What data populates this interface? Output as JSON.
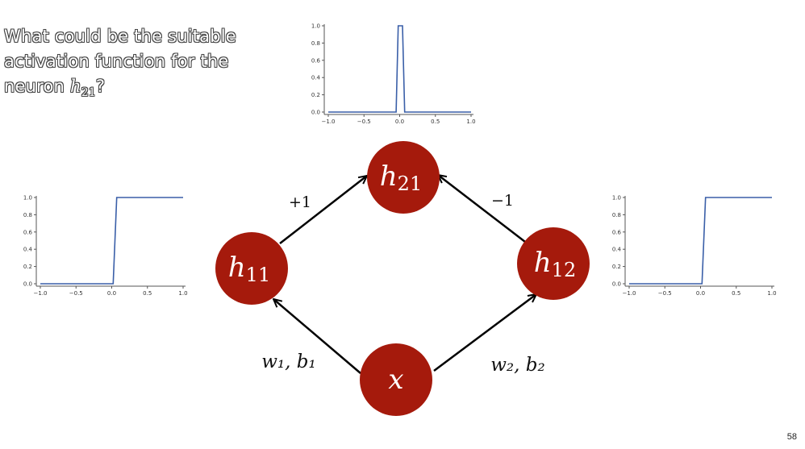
{
  "question": {
    "text": "What could be the suitable activation function for the neuron",
    "var_base": "h",
    "var_sub": "21",
    "suffix": "?"
  },
  "plots": [
    {
      "id": "h21",
      "type": "line",
      "x": [
        -1.0,
        -0.05,
        -0.02,
        0.0,
        0.04,
        0.07,
        1.0
      ],
      "y": [
        0.0,
        0.0,
        1.0,
        1.0,
        1.0,
        0.0,
        0.0
      ],
      "xlim": [
        -1.0,
        1.0
      ],
      "ylim": [
        0.0,
        1.0
      ],
      "xticks": [
        "−1.0",
        "−0.5",
        "0.0",
        "0.5",
        "1.0"
      ],
      "yticks": [
        "0.0",
        "0.2",
        "0.4",
        "0.6",
        "0.8",
        "1.0"
      ],
      "line_color": "#3a5fa8"
    },
    {
      "id": "h11",
      "type": "line",
      "x": [
        -1.0,
        0.02,
        0.07,
        1.0
      ],
      "y": [
        0.0,
        0.0,
        1.0,
        1.0
      ],
      "xlim": [
        -1.0,
        1.0
      ],
      "ylim": [
        0.0,
        1.0
      ],
      "xticks": [
        "−1.0",
        "−0.5",
        "0.0",
        "0.5",
        "1.0"
      ],
      "yticks": [
        "0.0",
        "0.2",
        "0.4",
        "0.6",
        "0.8",
        "1.0"
      ],
      "line_color": "#3a5fa8"
    },
    {
      "id": "h12",
      "type": "line",
      "x": [
        -1.0,
        0.02,
        0.07,
        1.0
      ],
      "y": [
        0.0,
        0.0,
        1.0,
        1.0
      ],
      "xlim": [
        -1.0,
        1.0
      ],
      "ylim": [
        0.0,
        1.0
      ],
      "xticks": [
        "−1.0",
        "−0.5",
        "0.0",
        "0.5",
        "1.0"
      ],
      "yticks": [
        "0.0",
        "0.2",
        "0.4",
        "0.6",
        "0.8",
        "1.0"
      ],
      "line_color": "#3a5fa8"
    }
  ],
  "diagram": {
    "node_color": "#a51a0c",
    "nodes": [
      {
        "id": "h21",
        "base": "h",
        "sub": "21"
      },
      {
        "id": "h11",
        "base": "h",
        "sub": "11"
      },
      {
        "id": "h12",
        "base": "h",
        "sub": "12"
      },
      {
        "id": "x",
        "base": "x",
        "sub": ""
      }
    ],
    "edge_labels": {
      "h11_h21": "+1",
      "h12_h21": "−1",
      "x_h11": "w₁, b₁",
      "x_h12": "w₂, b₂"
    }
  },
  "page_number": "58"
}
